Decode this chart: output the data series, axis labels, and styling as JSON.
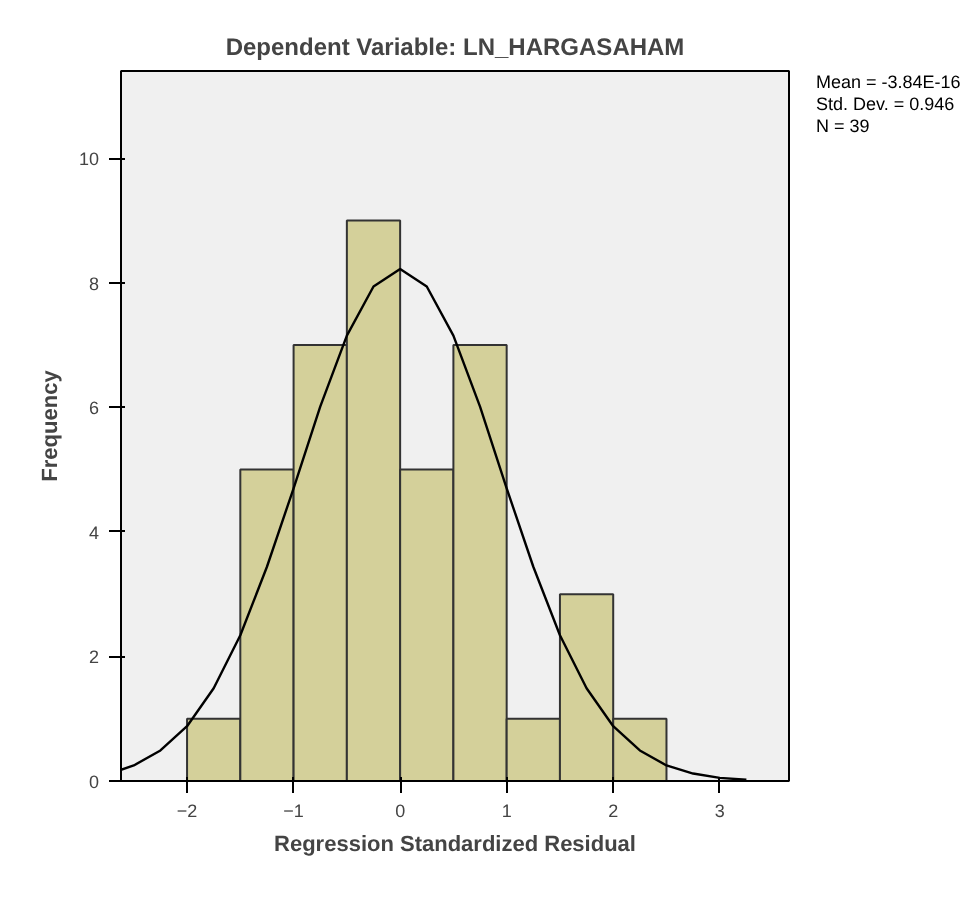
{
  "chart_data": {
    "type": "histogram",
    "title": "Dependent Variable: LN_HARGASAHAM",
    "xlabel": "Regression Standardized Residual",
    "ylabel": "Frequency",
    "bins": [
      -2,
      -1.5,
      -1,
      -0.5,
      0,
      0.5,
      1,
      1.5,
      2,
      2.5
    ],
    "values": [
      1,
      5,
      7,
      9,
      5,
      7,
      1,
      3,
      1
    ],
    "color": "#d4d09a",
    "series": [
      {
        "type": "line",
        "color": "#000000",
        "x": [
          -2.62,
          -2.5,
          -2.25,
          -2,
          -1.75,
          -1.5,
          -1.25,
          -1,
          -0.75,
          -0.5,
          -0.25,
          0,
          0.25,
          0.5,
          0.75,
          1,
          1.25,
          1.5,
          1.75,
          2,
          2.25,
          2.5,
          2.75,
          3,
          3.25
        ],
        "values": [
          0.18,
          0.25,
          0.49,
          0.88,
          1.49,
          2.34,
          3.44,
          4.7,
          6.01,
          7.15,
          7.94,
          8.22,
          7.94,
          7.15,
          6.01,
          4.7,
          3.44,
          2.34,
          1.49,
          0.88,
          0.49,
          0.25,
          0.12,
          0.05,
          0.02
        ]
      }
    ],
    "xlim": [
      -2.62,
      3.65
    ],
    "ylim": [
      0,
      11.4
    ],
    "xticks": [
      -2,
      -1,
      0,
      1,
      2,
      3
    ],
    "yticks": [
      0,
      2,
      4,
      6,
      8,
      10
    ],
    "grid": false,
    "annotations": [
      "Mean = -3.84E-16",
      "Std. Dev. = 0.946",
      "N = 39"
    ]
  }
}
